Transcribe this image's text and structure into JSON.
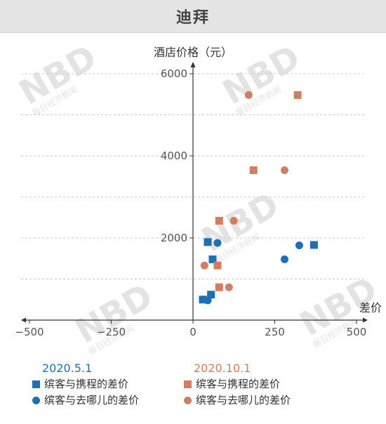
{
  "watermark": "NBD 每日经济新闻",
  "chart_data": {
    "type": "scatter",
    "title": "迪拜",
    "xlabel": "差价",
    "ylabel": "酒店价格（元）",
    "xlim": [
      -500,
      500
    ],
    "ylim": [
      0,
      6000
    ],
    "x_ticks": [
      "-500",
      "-250",
      "0",
      "250",
      "500"
    ],
    "y_ticks": [
      "2000",
      "4000",
      "6000"
    ],
    "colors": {
      "may": "#1f6fb6",
      "oct": "#d07e60"
    },
    "groups": [
      {
        "heading": "2020.5.1",
        "color_key": "may"
      },
      {
        "heading": "2020.10.1",
        "color_key": "oct"
      }
    ],
    "series": [
      {
        "name": "缤客与携程的差价",
        "group": "2020.5.1",
        "marker": "square",
        "color_key": "may",
        "points": [
          [
            30,
            500
          ],
          [
            55,
            620
          ],
          [
            45,
            1900
          ],
          [
            60,
            1480
          ],
          [
            370,
            1830
          ]
        ]
      },
      {
        "name": "缤客与去哪儿的差价",
        "group": "2020.5.1",
        "marker": "circle",
        "color_key": "may",
        "points": [
          [
            45,
            480
          ],
          [
            75,
            1880
          ],
          [
            280,
            1480
          ],
          [
            325,
            1820
          ]
        ]
      },
      {
        "name": "缤客与携程的差价",
        "group": "2020.10.1",
        "marker": "square",
        "color_key": "oct",
        "points": [
          [
            80,
            800
          ],
          [
            75,
            1330
          ],
          [
            80,
            2420
          ],
          [
            185,
            3650
          ],
          [
            320,
            5480
          ]
        ]
      },
      {
        "name": "缤客与去哪儿的差价",
        "group": "2020.10.1",
        "marker": "circle",
        "color_key": "oct",
        "points": [
          [
            110,
            800
          ],
          [
            35,
            1330
          ],
          [
            125,
            2420
          ],
          [
            280,
            3650
          ],
          [
            170,
            5480
          ]
        ]
      }
    ]
  }
}
